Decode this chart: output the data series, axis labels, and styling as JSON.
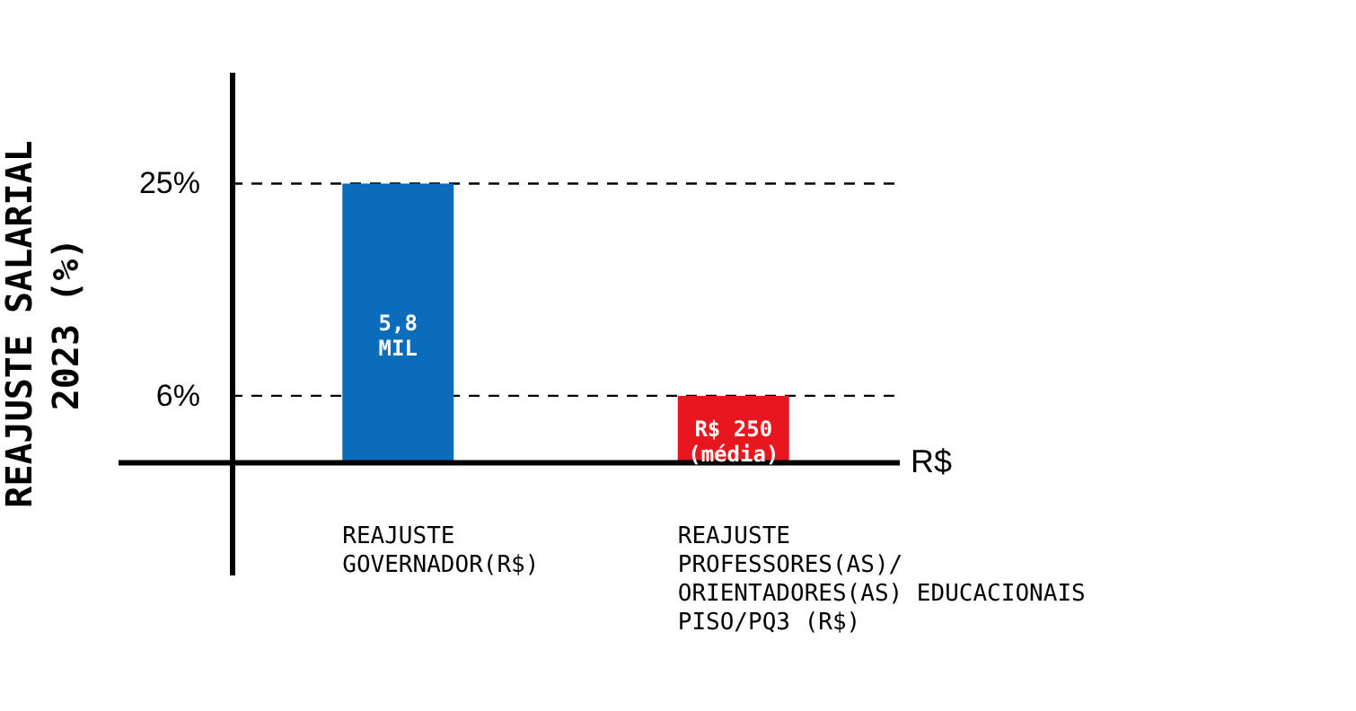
{
  "chart_data": {
    "type": "bar",
    "ylabel": "REAJUSTE SALARIAL\n2023 (%)",
    "xlabel": "R$",
    "categories": [
      "REAJUSTE\nGOVERNADOR(R$)",
      "REAJUSTE\nPROFESSORES(AS)/\nORIENTADORES(AS) EDUCACIONAIS\nPISO/PQ3 (R$)"
    ],
    "values": [
      25,
      6
    ],
    "colors": [
      "#0c6cbc",
      "#e8161e"
    ],
    "annotations": [
      "5,8\nMIL",
      "R$ 250\n(média)"
    ],
    "ylim": [
      -10,
      35
    ],
    "yticks": [
      {
        "value": 25,
        "label": "25%"
      },
      {
        "value": 6,
        "label": "6%"
      }
    ],
    "ref_lines": [
      {
        "axis": "y",
        "value": 25,
        "line_style": "dashed"
      },
      {
        "axis": "y",
        "value": 6,
        "line_style": "dashed"
      }
    ],
    "grid": false,
    "legend": false
  }
}
